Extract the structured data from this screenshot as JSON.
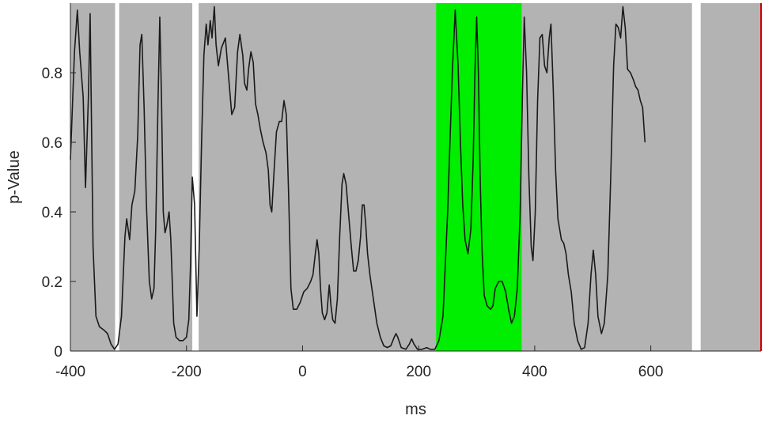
{
  "chart_data": {
    "type": "line",
    "xlabel": "ms",
    "ylabel": "p-Value",
    "xlim": [
      -400,
      790
    ],
    "ylim": [
      0,
      1
    ],
    "xticks": [
      -400,
      -200,
      0,
      200,
      400,
      600
    ],
    "yticks": [
      0,
      0.2,
      0.4,
      0.6,
      0.8
    ],
    "ytick_labels": [
      "0",
      "0.2",
      "0.4",
      "0.6",
      "0.8"
    ],
    "grid": false,
    "legend": "none",
    "colors": {
      "background_band": "#b3b3b3",
      "significant_band": "#00ee00",
      "gap": "#ffffff",
      "line": "#1a1a1a",
      "axis": "#262626",
      "right_edge": "#cc0000"
    },
    "regions": [
      {
        "x0": -400,
        "x1": -323,
        "kind": "non-significant"
      },
      {
        "x0": -316,
        "x1": -190,
        "kind": "non-significant"
      },
      {
        "x0": -179,
        "x1": 230,
        "kind": "non-significant"
      },
      {
        "x0": 230,
        "x1": 378,
        "kind": "significant"
      },
      {
        "x0": 378,
        "x1": 671,
        "kind": "non-significant"
      },
      {
        "x0": 686,
        "x1": 790,
        "kind": "non-significant"
      }
    ],
    "series": [
      {
        "points": [
          [
            -400,
            0.55
          ],
          [
            -393,
            0.86
          ],
          [
            -388,
            0.98
          ],
          [
            -384,
            0.86
          ],
          [
            -378,
            0.73
          ],
          [
            -374,
            0.47
          ],
          [
            -369,
            0.73
          ],
          [
            -366,
            0.97
          ],
          [
            -361,
            0.3
          ],
          [
            -356,
            0.1
          ],
          [
            -350,
            0.07
          ],
          [
            -342,
            0.06
          ],
          [
            -336,
            0.05
          ],
          [
            -330,
            0.02
          ],
          [
            -324,
            0.005
          ],
          [
            -318,
            0.02
          ],
          [
            -312,
            0.1
          ],
          [
            -306,
            0.33
          ],
          [
            -303,
            0.38
          ],
          [
            -298,
            0.32
          ],
          [
            -294,
            0.42
          ],
          [
            -289,
            0.46
          ],
          [
            -284,
            0.62
          ],
          [
            -280,
            0.88
          ],
          [
            -277,
            0.91
          ],
          [
            -273,
            0.7
          ],
          [
            -269,
            0.42
          ],
          [
            -264,
            0.2
          ],
          [
            -260,
            0.15
          ],
          [
            -256,
            0.18
          ],
          [
            -253,
            0.35
          ],
          [
            -249,
            0.72
          ],
          [
            -246,
            0.96
          ],
          [
            -243,
            0.72
          ],
          [
            -240,
            0.4
          ],
          [
            -237,
            0.34
          ],
          [
            -234,
            0.36
          ],
          [
            -230,
            0.4
          ],
          [
            -227,
            0.32
          ],
          [
            -222,
            0.08
          ],
          [
            -218,
            0.04
          ],
          [
            -212,
            0.03
          ],
          [
            -206,
            0.03
          ],
          [
            -200,
            0.04
          ],
          [
            -196,
            0.09
          ],
          [
            -193,
            0.25
          ],
          [
            -190,
            0.5
          ],
          [
            -186,
            0.42
          ],
          [
            -182,
            0.1
          ],
          [
            -178,
            0.3
          ],
          [
            -174,
            0.6
          ],
          [
            -170,
            0.85
          ],
          [
            -166,
            0.94
          ],
          [
            -163,
            0.88
          ],
          [
            -159,
            0.95
          ],
          [
            -156,
            0.9
          ],
          [
            -152,
            0.99
          ],
          [
            -149,
            0.88
          ],
          [
            -145,
            0.82
          ],
          [
            -140,
            0.87
          ],
          [
            -133,
            0.9
          ],
          [
            -128,
            0.8
          ],
          [
            -122,
            0.68
          ],
          [
            -117,
            0.7
          ],
          [
            -112,
            0.86
          ],
          [
            -108,
            0.91
          ],
          [
            -103,
            0.85
          ],
          [
            -100,
            0.77
          ],
          [
            -96,
            0.75
          ],
          [
            -93,
            0.81
          ],
          [
            -89,
            0.86
          ],
          [
            -85,
            0.83
          ],
          [
            -81,
            0.71
          ],
          [
            -77,
            0.68
          ],
          [
            -73,
            0.64
          ],
          [
            -68,
            0.6
          ],
          [
            -63,
            0.57
          ],
          [
            -59,
            0.52
          ],
          [
            -56,
            0.42
          ],
          [
            -53,
            0.4
          ],
          [
            -49,
            0.52
          ],
          [
            -45,
            0.63
          ],
          [
            -40,
            0.66
          ],
          [
            -36,
            0.66
          ],
          [
            -32,
            0.72
          ],
          [
            -28,
            0.68
          ],
          [
            -24,
            0.45
          ],
          [
            -20,
            0.18
          ],
          [
            -16,
            0.12
          ],
          [
            -10,
            0.12
          ],
          [
            -4,
            0.14
          ],
          [
            2,
            0.17
          ],
          [
            8,
            0.18
          ],
          [
            14,
            0.2
          ],
          [
            18,
            0.22
          ],
          [
            22,
            0.28
          ],
          [
            25,
            0.32
          ],
          [
            28,
            0.28
          ],
          [
            31,
            0.18
          ],
          [
            34,
            0.11
          ],
          [
            38,
            0.09
          ],
          [
            42,
            0.11
          ],
          [
            46,
            0.19
          ],
          [
            49,
            0.13
          ],
          [
            52,
            0.09
          ],
          [
            56,
            0.08
          ],
          [
            60,
            0.15
          ],
          [
            64,
            0.33
          ],
          [
            68,
            0.48
          ],
          [
            71,
            0.51
          ],
          [
            75,
            0.48
          ],
          [
            79,
            0.4
          ],
          [
            84,
            0.3
          ],
          [
            88,
            0.23
          ],
          [
            92,
            0.23
          ],
          [
            96,
            0.26
          ],
          [
            100,
            0.33
          ],
          [
            103,
            0.42
          ],
          [
            106,
            0.42
          ],
          [
            109,
            0.36
          ],
          [
            112,
            0.28
          ],
          [
            116,
            0.22
          ],
          [
            122,
            0.15
          ],
          [
            128,
            0.08
          ],
          [
            134,
            0.04
          ],
          [
            140,
            0.015
          ],
          [
            146,
            0.01
          ],
          [
            152,
            0.015
          ],
          [
            158,
            0.04
          ],
          [
            161,
            0.05
          ],
          [
            164,
            0.04
          ],
          [
            170,
            0.01
          ],
          [
            178,
            0.005
          ],
          [
            184,
            0.02
          ],
          [
            188,
            0.035
          ],
          [
            192,
            0.02
          ],
          [
            198,
            0.005
          ],
          [
            206,
            0.005
          ],
          [
            214,
            0.01
          ],
          [
            220,
            0.005
          ],
          [
            228,
            0.005
          ],
          [
            235,
            0.03
          ],
          [
            242,
            0.1
          ],
          [
            250,
            0.4
          ],
          [
            258,
            0.8
          ],
          [
            263,
            0.98
          ],
          [
            268,
            0.82
          ],
          [
            272,
            0.6
          ],
          [
            276,
            0.42
          ],
          [
            280,
            0.32
          ],
          [
            285,
            0.28
          ],
          [
            290,
            0.35
          ],
          [
            294,
            0.55
          ],
          [
            297,
            0.8
          ],
          [
            300,
            0.96
          ],
          [
            303,
            0.8
          ],
          [
            306,
            0.5
          ],
          [
            309,
            0.3
          ],
          [
            313,
            0.16
          ],
          [
            318,
            0.13
          ],
          [
            324,
            0.12
          ],
          [
            328,
            0.13
          ],
          [
            332,
            0.18
          ],
          [
            338,
            0.2
          ],
          [
            344,
            0.2
          ],
          [
            350,
            0.17
          ],
          [
            355,
            0.12
          ],
          [
            360,
            0.08
          ],
          [
            365,
            0.1
          ],
          [
            370,
            0.18
          ],
          [
            375,
            0.4
          ],
          [
            379,
            0.75
          ],
          [
            382,
            0.96
          ],
          [
            386,
            0.8
          ],
          [
            390,
            0.5
          ],
          [
            394,
            0.3
          ],
          [
            397,
            0.26
          ],
          [
            401,
            0.4
          ],
          [
            405,
            0.72
          ],
          [
            409,
            0.9
          ],
          [
            413,
            0.91
          ],
          [
            417,
            0.82
          ],
          [
            421,
            0.8
          ],
          [
            425,
            0.9
          ],
          [
            428,
            0.94
          ],
          [
            432,
            0.75
          ],
          [
            436,
            0.52
          ],
          [
            440,
            0.38
          ],
          [
            446,
            0.32
          ],
          [
            450,
            0.31
          ],
          [
            454,
            0.28
          ],
          [
            458,
            0.22
          ],
          [
            463,
            0.17
          ],
          [
            468,
            0.08
          ],
          [
            474,
            0.03
          ],
          [
            480,
            0.005
          ],
          [
            486,
            0.01
          ],
          [
            492,
            0.08
          ],
          [
            497,
            0.22
          ],
          [
            501,
            0.29
          ],
          [
            505,
            0.22
          ],
          [
            509,
            0.1
          ],
          [
            515,
            0.05
          ],
          [
            520,
            0.08
          ],
          [
            526,
            0.22
          ],
          [
            531,
            0.5
          ],
          [
            536,
            0.82
          ],
          [
            540,
            0.94
          ],
          [
            544,
            0.93
          ],
          [
            548,
            0.9
          ],
          [
            552,
            0.99
          ],
          [
            556,
            0.93
          ],
          [
            560,
            0.81
          ],
          [
            565,
            0.8
          ],
          [
            570,
            0.78
          ],
          [
            574,
            0.76
          ],
          [
            578,
            0.75
          ],
          [
            582,
            0.72
          ],
          [
            586,
            0.7
          ],
          [
            590,
            0.6
          ]
        ]
      }
    ]
  }
}
